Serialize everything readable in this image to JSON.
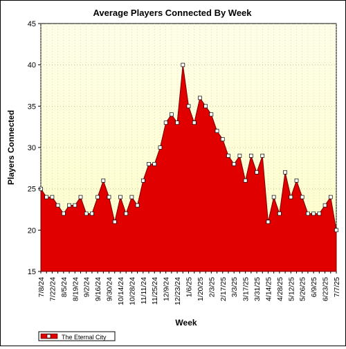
{
  "chart_data": {
    "type": "area",
    "title": "Average Players Connected By Week",
    "xlabel": "Week",
    "ylabel": "Players Connected",
    "ylim": [
      15,
      45
    ],
    "yticks": [
      15,
      20,
      25,
      30,
      35,
      40,
      45
    ],
    "grid": true,
    "legend_position": "bottom-left",
    "colors": {
      "fill": "#e00000",
      "marker_fill": "#ffffff",
      "plot_bg_top": "#fefee8",
      "plot_bg_bottom": "#fdfdc8"
    },
    "x": [
      "7/8/24",
      "7/15/24",
      "7/22/24",
      "7/29/24",
      "8/5/24",
      "8/12/24",
      "8/19/24",
      "8/26/24",
      "9/2/24",
      "9/9/24",
      "9/16/24",
      "9/23/24",
      "9/30/24",
      "10/7/24",
      "10/14/24",
      "10/21/24",
      "10/28/24",
      "11/4/24",
      "11/11/24",
      "11/18/24",
      "11/25/24",
      "12/2/24",
      "12/9/24",
      "12/16/24",
      "12/23/24",
      "12/30/24",
      "1/6/25",
      "1/13/25",
      "1/20/25",
      "1/27/25",
      "2/3/25",
      "2/10/25",
      "2/17/25",
      "2/24/25",
      "3/3/25",
      "3/10/25",
      "3/17/25",
      "3/24/25",
      "3/31/25",
      "4/7/25",
      "4/14/25",
      "4/21/25",
      "4/28/25",
      "5/5/25",
      "5/12/25",
      "5/19/25",
      "5/26/25",
      "6/2/25",
      "6/9/25",
      "6/16/25",
      "6/23/25",
      "6/30/25",
      "7/7/25"
    ],
    "tick_labels": [
      "7/8/24",
      "7/22/24",
      "8/5/24",
      "8/19/24",
      "9/2/24",
      "9/16/24",
      "9/30/24",
      "10/14/24",
      "10/28/24",
      "11/11/24",
      "11/25/24",
      "12/9/24",
      "12/23/24",
      "1/6/25",
      "1/20/25",
      "2/3/25",
      "2/17/25",
      "3/3/25",
      "3/17/25",
      "3/31/25",
      "4/14/25",
      "4/28/25",
      "5/12/25",
      "5/26/25",
      "6/9/25",
      "6/23/25",
      "7/7/25"
    ],
    "series": [
      {
        "name": "The Eternal City",
        "values": [
          25,
          24,
          24,
          23,
          22,
          23,
          23,
          24,
          22,
          22,
          24,
          26,
          24,
          21,
          24,
          22,
          24,
          23,
          26,
          28,
          28,
          30,
          33,
          34,
          33,
          40,
          35,
          33,
          36,
          35,
          34,
          32,
          31,
          29,
          28,
          29,
          26,
          29,
          27,
          29,
          21,
          24,
          22,
          27,
          24,
          26,
          24,
          22,
          22,
          22,
          23,
          24,
          20
        ]
      }
    ]
  }
}
